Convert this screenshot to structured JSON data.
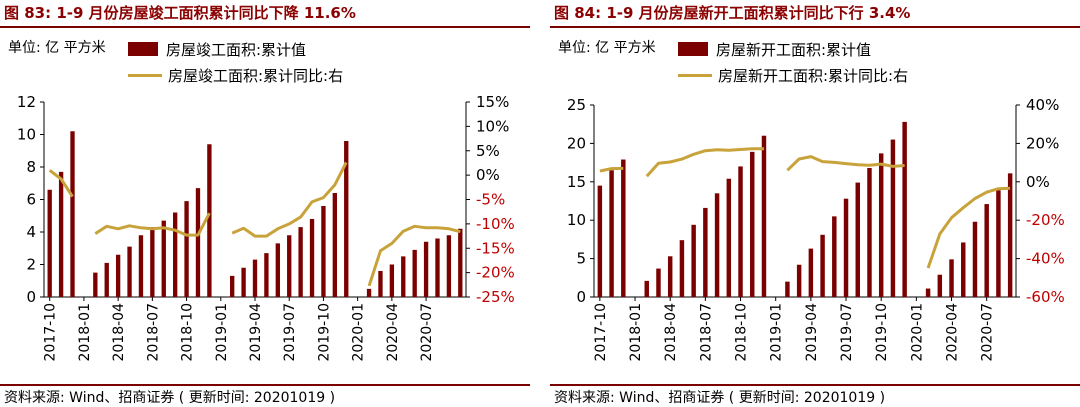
{
  "panels": [
    {
      "title": "图 83:  1-9 月份房屋竣工面积累计同比下降 11.6%",
      "unit": "单位:  亿 平方米",
      "source": "资料来源:  Wind、招商证券 ( 更新时间:  20201019 )"
    },
    {
      "title": "图 84:  1-9 月份房屋新开工面积累计同比下行 3.4%",
      "unit": "单位:  亿 平方米",
      "source": "资料来源:  Wind、招商证券 ( 更新时间:  20201019 )"
    }
  ],
  "colors": {
    "bar": "#7b0000",
    "line": "#c8a23a",
    "title": "#8b0000"
  },
  "chart_data": [
    {
      "type": "bar+line",
      "x_tick_labels": [
        "2017-10",
        "2018-01",
        "2018-04",
        "2018-07",
        "2018-10",
        "2019-01",
        "2019-04",
        "2019-07",
        "2019-10",
        "2020-01",
        "2020-04",
        "2020-07"
      ],
      "series": [
        {
          "name": "房屋竣工面积:累计值",
          "axis": "left",
          "kind": "bar",
          "values": [
            6.6,
            7.7,
            10.2,
            null,
            1.5,
            2.1,
            2.6,
            3.1,
            3.8,
            4.3,
            4.7,
            5.2,
            5.9,
            6.7,
            9.4,
            null,
            1.3,
            1.8,
            2.3,
            2.7,
            3.3,
            3.8,
            4.3,
            4.8,
            5.6,
            6.4,
            9.6,
            null,
            0.5,
            1.6,
            2.0,
            2.5,
            2.9,
            3.4,
            3.6,
            3.8,
            4.2
          ]
        },
        {
          "name": "房屋竣工面积:累计同比:右",
          "axis": "right",
          "kind": "line",
          "values": [
            1.0,
            -0.8,
            -4.4,
            null,
            -12.0,
            -10.5,
            -11.0,
            -10.4,
            -10.8,
            -11.0,
            -10.8,
            -11.3,
            -12.3,
            -12.3,
            -7.8,
            null,
            -11.9,
            -10.9,
            -12.5,
            -12.5,
            -11.0,
            -10.0,
            -8.6,
            -5.5,
            -4.6,
            -2.0,
            2.6,
            null,
            -22.7,
            -15.5,
            -14.0,
            -11.5,
            -10.5,
            -10.8,
            -10.8,
            -11.0,
            -11.6
          ]
        }
      ],
      "left_axis": {
        "min": 0,
        "max": 12,
        "ticks": [
          "0",
          "2",
          "4",
          "6",
          "8",
          "10",
          "12"
        ]
      },
      "right_axis": {
        "min": -25,
        "max": 15,
        "ticks": [
          "-25%",
          "-20%",
          "-15%",
          "-10%",
          "-5%",
          "0%",
          "5%",
          "10%",
          "15%"
        ]
      },
      "legend": [
        "房屋竣工面积:累计值",
        "房屋竣工面积:累计同比:右"
      ]
    },
    {
      "type": "bar+line",
      "x_tick_labels": [
        "2017-10",
        "2018-01",
        "2018-04",
        "2018-07",
        "2018-10",
        "2019-01",
        "2019-04",
        "2019-07",
        "2019-10",
        "2020-01",
        "2020-04",
        "2020-07"
      ],
      "series": [
        {
          "name": "房屋新开工面积:累计值",
          "axis": "left",
          "kind": "bar",
          "values": [
            14.5,
            16.5,
            17.9,
            null,
            2.1,
            3.7,
            5.3,
            7.4,
            9.4,
            11.6,
            13.5,
            15.4,
            17.0,
            18.9,
            21.0,
            null,
            2.0,
            4.2,
            6.3,
            8.1,
            10.5,
            12.8,
            14.9,
            16.8,
            18.7,
            20.5,
            22.8,
            null,
            1.1,
            2.9,
            4.9,
            7.1,
            9.8,
            12.1,
            13.9,
            16.1
          ]
        },
        {
          "name": "房屋新开工面积:累计同比:右",
          "axis": "right",
          "kind": "line",
          "values": [
            5.6,
            6.9,
            7.0,
            null,
            2.9,
            9.7,
            10.3,
            11.8,
            14.3,
            16.2,
            16.7,
            16.4,
            16.8,
            17.2,
            17.2,
            null,
            6.0,
            11.9,
            13.1,
            10.5,
            10.1,
            9.5,
            8.9,
            8.6,
            9.2,
            8.0,
            8.5,
            null,
            -44.9,
            -27.2,
            -18.7,
            -13.5,
            -8.7,
            -5.4,
            -3.6,
            -3.4
          ]
        }
      ],
      "left_axis": {
        "min": 0,
        "max": 25,
        "ticks": [
          "0",
          "5",
          "10",
          "15",
          "20",
          "25"
        ]
      },
      "right_axis": {
        "min": -60,
        "max": 40,
        "ticks": [
          "-60%",
          "-40%",
          "-20%",
          "0%",
          "20%",
          "40%"
        ]
      },
      "legend": [
        "房屋新开工面积:累计值",
        "房屋新开工面积:累计同比:右"
      ]
    }
  ]
}
